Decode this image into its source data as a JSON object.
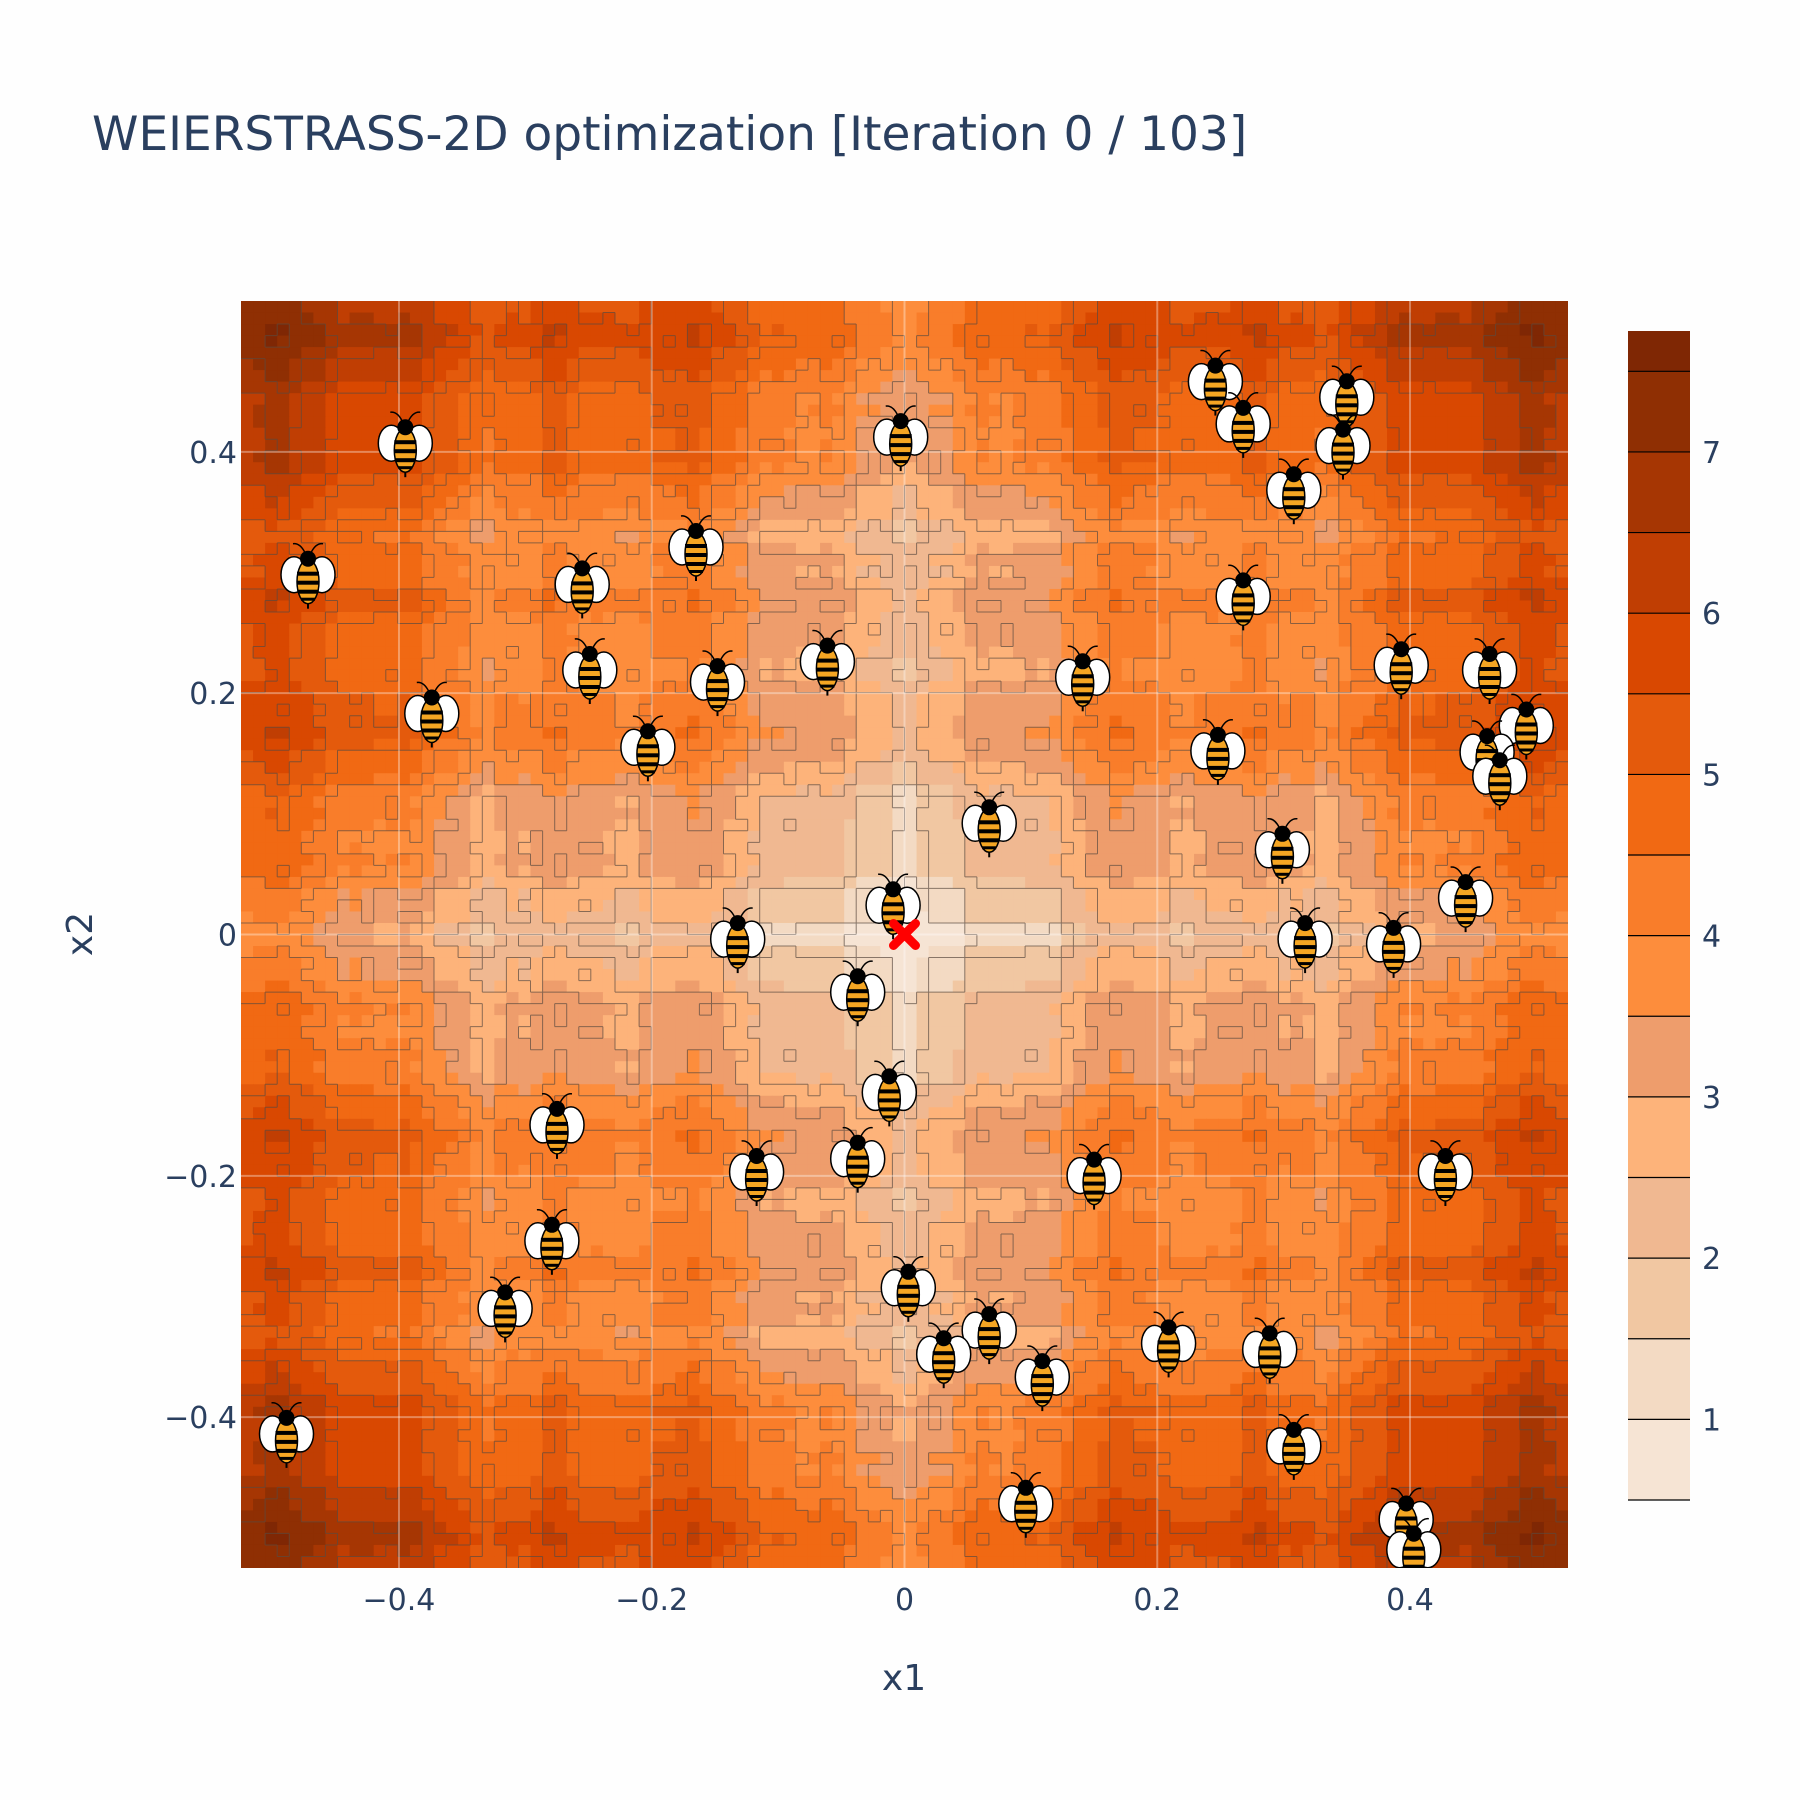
{
  "chart_data": {
    "type": "heatmap",
    "subtype": "contour",
    "title": "WEIERSTRASS-2D optimization [Iteration 0 / 103]",
    "xlabel": "x1",
    "ylabel": "x2",
    "xlim": [
      -0.525,
      0.525
    ],
    "ylim": [
      -0.525,
      0.525
    ],
    "x_ticks": [
      -0.4,
      -0.2,
      0,
      0.2,
      0.4
    ],
    "x_tick_labels": [
      "−0.4",
      "−0.2",
      "0",
      "0.2",
      "0.4"
    ],
    "y_ticks": [
      -0.4,
      -0.2,
      0,
      0.2,
      0.4
    ],
    "y_tick_labels": [
      "−0.4",
      "−0.2",
      "0",
      "0.2",
      "0.4"
    ],
    "colorbar": {
      "range": [
        0.5,
        7.75
      ],
      "levels": [
        0.5,
        1.0,
        1.5,
        2.0,
        2.5,
        3.0,
        3.5,
        4.0,
        4.5,
        5.0,
        5.5,
        6.0,
        6.5,
        7.0,
        7.5,
        7.75
      ],
      "tick_values": [
        1,
        2,
        3,
        4,
        5,
        6,
        7
      ],
      "tick_labels": [
        "1",
        "2",
        "3",
        "4",
        "5",
        "6",
        "7"
      ],
      "colors": [
        "#f6e4d4",
        "#f3dac3",
        "#f1c7a2",
        "#f0b891",
        "#fdb37a",
        "#ee9d6c",
        "#fd8d3c",
        "#f97d2a",
        "#f16913",
        "#e45a0c",
        "#d94801",
        "#c03e03",
        "#a63603",
        "#8f2f03",
        "#7f2704"
      ]
    },
    "grid": true,
    "global_minimum": {
      "name": "optimum",
      "x1": 0.0,
      "x2": 0.0,
      "color": "#ff0000",
      "marker": "x"
    },
    "particles": {
      "marker": "bee-icon",
      "points": [
        {
          "x1": -0.395,
          "x2": 0.408
        },
        {
          "x1": -0.003,
          "x2": 0.413
        },
        {
          "x1": 0.246,
          "x2": 0.459
        },
        {
          "x1": 0.268,
          "x2": 0.424
        },
        {
          "x1": 0.35,
          "x2": 0.446
        },
        {
          "x1": 0.347,
          "x2": 0.406
        },
        {
          "x1": 0.308,
          "x2": 0.369
        },
        {
          "x1": -0.472,
          "x2": 0.299
        },
        {
          "x1": -0.165,
          "x2": 0.322
        },
        {
          "x1": -0.255,
          "x2": 0.291
        },
        {
          "x1": 0.268,
          "x2": 0.281
        },
        {
          "x1": -0.249,
          "x2": 0.22
        },
        {
          "x1": -0.148,
          "x2": 0.21
        },
        {
          "x1": -0.061,
          "x2": 0.227
        },
        {
          "x1": 0.141,
          "x2": 0.214
        },
        {
          "x1": 0.393,
          "x2": 0.224
        },
        {
          "x1": 0.463,
          "x2": 0.22
        },
        {
          "x1": -0.374,
          "x2": 0.184
        },
        {
          "x1": -0.203,
          "x2": 0.156
        },
        {
          "x1": 0.248,
          "x2": 0.153
        },
        {
          "x1": 0.492,
          "x2": 0.174
        },
        {
          "x1": 0.461,
          "x2": 0.152
        },
        {
          "x1": 0.471,
          "x2": 0.132
        },
        {
          "x1": 0.067,
          "x2": 0.093
        },
        {
          "x1": 0.299,
          "x2": 0.071
        },
        {
          "x1": -0.009,
          "x2": 0.025
        },
        {
          "x1": 0.444,
          "x2": 0.031
        },
        {
          "x1": -0.132,
          "x2": -0.003
        },
        {
          "x1": 0.317,
          "x2": -0.003
        },
        {
          "x1": 0.387,
          "x2": -0.007
        },
        {
          "x1": -0.037,
          "x2": -0.047
        },
        {
          "x1": -0.012,
          "x2": -0.13
        },
        {
          "x1": -0.275,
          "x2": -0.157
        },
        {
          "x1": -0.117,
          "x2": -0.196
        },
        {
          "x1": -0.037,
          "x2": -0.185
        },
        {
          "x1": 0.15,
          "x2": -0.199
        },
        {
          "x1": 0.428,
          "x2": -0.196
        },
        {
          "x1": -0.279,
          "x2": -0.253
        },
        {
          "x1": 0.003,
          "x2": -0.292
        },
        {
          "x1": -0.316,
          "x2": -0.309
        },
        {
          "x1": 0.067,
          "x2": -0.327
        },
        {
          "x1": 0.031,
          "x2": -0.347
        },
        {
          "x1": 0.109,
          "x2": -0.366
        },
        {
          "x1": 0.209,
          "x2": -0.338
        },
        {
          "x1": 0.289,
          "x2": -0.343
        },
        {
          "x1": 0.308,
          "x2": -0.423
        },
        {
          "x1": -0.489,
          "x2": -0.413
        },
        {
          "x1": 0.096,
          "x2": -0.471
        },
        {
          "x1": 0.397,
          "x2": -0.484
        },
        {
          "x1": 0.403,
          "x2": -0.509
        }
      ]
    }
  }
}
